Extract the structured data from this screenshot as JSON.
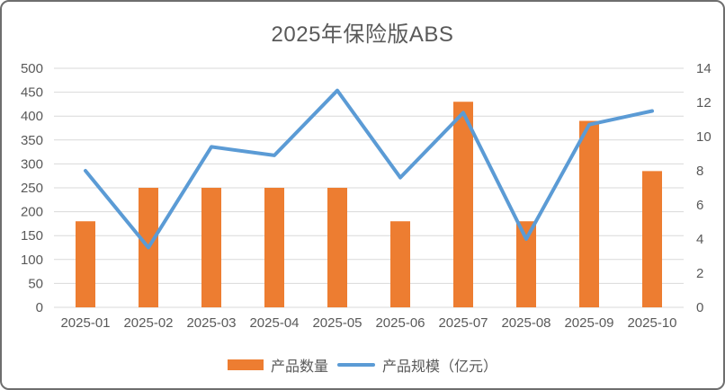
{
  "chart_data": {
    "type": "bar+line",
    "title": "2025年保险版ABS",
    "categories": [
      "2025-01",
      "2025-02",
      "2025-03",
      "2025-04",
      "2025-05",
      "2025-06",
      "2025-07",
      "2025-08",
      "2025-09",
      "2025-10"
    ],
    "series": [
      {
        "name": "产品数量",
        "type": "bar",
        "axis": "left",
        "color": "#ED7D31",
        "values": [
          180,
          250,
          250,
          250,
          250,
          180,
          430,
          180,
          390,
          285
        ]
      },
      {
        "name": "产品规模（亿元）",
        "type": "line",
        "axis": "right",
        "color": "#5B9BD5",
        "values": [
          8.0,
          3.5,
          9.4,
          8.9,
          12.7,
          7.6,
          11.4,
          4.0,
          10.7,
          11.5
        ]
      }
    ],
    "left_axis": {
      "min": 0,
      "max": 500,
      "step": 50,
      "ticks": [
        "0",
        "50",
        "100",
        "150",
        "200",
        "250",
        "300",
        "350",
        "400",
        "450",
        "500"
      ]
    },
    "right_axis": {
      "min": 0,
      "max": 14,
      "step": 2,
      "ticks": [
        "0",
        "2",
        "4",
        "6",
        "8",
        "10",
        "12",
        "14"
      ]
    },
    "grid": true,
    "gridline_color": "#D9D9D9",
    "label_color": "#595959",
    "legend_position": "bottom"
  }
}
